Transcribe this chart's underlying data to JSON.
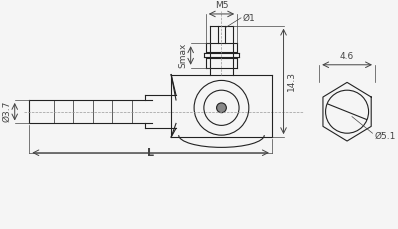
{
  "bg_color": "#f5f5f5",
  "line_color": "#222222",
  "dim_color": "#444444",
  "title": "",
  "annotations": {
    "L": "L",
    "dia_3_7": "Ø3.7",
    "dia_5_1": "Ø5.1",
    "14_3": "14.3",
    "Smax": "Smax",
    "dia_1": "Ø1",
    "M5": "M5",
    "4_6": "4.6"
  }
}
